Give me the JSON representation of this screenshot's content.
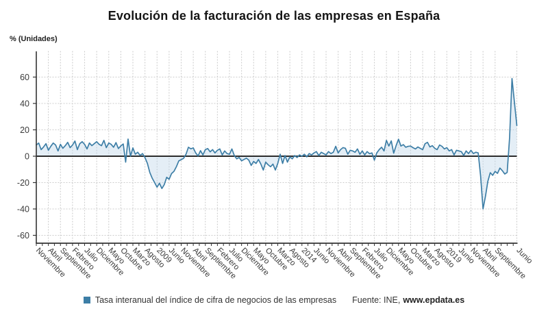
{
  "page": {
    "title": "Evolución de la facturación de las empresas en España"
  },
  "y_axis_label": "% (Unidades)",
  "legend": {
    "label": "Tasa interanual del índice de cifra de negocios de las empresas"
  },
  "source": {
    "prefix": "Fuente: INE,",
    "site": "www.epdata.es"
  },
  "colors": {
    "line": "#3d7ea6",
    "fill": "#bed7ea",
    "zero_line": "#2b2b2b",
    "axis": "#333333",
    "grid": "#c9c9c9",
    "tick_text": "#3a3a3a",
    "legend_marker": "#3d7ea6"
  },
  "chart_data": {
    "type": "area",
    "title": "Evolución de la facturación de las empresas en España",
    "xlabel": "",
    "ylabel": "% (Unidades)",
    "unit": "% interanual",
    "x_start_month": "2004-11",
    "x_end_month": "2021-06",
    "months_total": 200,
    "ylim": [
      -66,
      80
    ],
    "y_ticks": [
      60,
      40,
      20,
      0,
      -20,
      -40,
      -60
    ],
    "zero_baseline": true,
    "grid": "dotted",
    "legend_position": "bottom",
    "x_tick_positions": [
      0,
      5,
      10,
      15,
      20,
      25,
      30,
      35,
      40,
      45,
      50,
      55,
      60,
      65,
      70,
      75,
      80,
      85,
      90,
      95,
      100,
      105,
      110,
      115,
      120,
      125,
      130,
      135,
      140,
      145,
      150,
      155,
      160,
      165,
      170,
      175,
      180,
      185,
      190,
      199
    ],
    "x_tick_labels": [
      "Noviembre",
      "Abril",
      "Septiembre",
      "Febrero",
      "Julio",
      "Diciembre",
      "Mayo",
      "Octubre",
      "Marzo",
      "Agosto",
      "2009",
      "Junio",
      "Noviembre",
      "Abril",
      "Septiembre",
      "Febrero",
      "Julio",
      "Diciembre",
      "Mayo",
      "Octubre",
      "Marzo",
      "Agosto",
      "2014",
      "Junio",
      "Noviembre",
      "Abril",
      "Septiembre",
      "Febrero",
      "Julio",
      "Diciembre",
      "Mayo",
      "Octubre",
      "Marzo",
      "Agosto",
      "2019",
      "Junio",
      "Noviembre",
      "Abril",
      "Septiembre",
      "Junio"
    ],
    "series": [
      {
        "name": "Tasa interanual del índice de cifra de negocios de las empresas",
        "values": [
          8.5,
          10,
          5,
          7,
          9.5,
          4.5,
          7.5,
          10,
          8.5,
          4,
          9,
          6,
          8,
          10.5,
          6.5,
          8.5,
          11.5,
          5,
          9.5,
          11,
          9,
          5.5,
          10,
          8,
          9.5,
          11,
          9,
          8,
          12,
          6.5,
          10,
          9,
          6.8,
          10.3,
          5.8,
          7.8,
          9.3,
          -4.5,
          13,
          0,
          6.3,
          1.5,
          3,
          0.6,
          2,
          -1,
          -5.4,
          -12.3,
          -16.7,
          -20,
          -23.5,
          -20.5,
          -24.5,
          -21.5,
          -16,
          -17.5,
          -13.2,
          -11.5,
          -8,
          -3.6,
          -2.6,
          -1.6,
          1.5,
          6.8,
          5.6,
          6.3,
          2.5,
          0.2,
          4.2,
          1,
          5,
          5.8,
          3.3,
          5,
          2.5,
          4.5,
          5.5,
          1,
          4,
          2,
          1.5,
          5.5,
          0.5,
          -2,
          -1,
          -3.5,
          -2.5,
          -1.5,
          -3,
          -7,
          -4,
          -5.5,
          -2.5,
          -6,
          -10.5,
          -4.5,
          -6.5,
          -8,
          -6,
          -10.5,
          -5.5,
          1.5,
          -5.5,
          0.5,
          -4.5,
          -0.5,
          -2,
          0.5,
          -1,
          1,
          0,
          1.5,
          -0.5,
          2,
          1,
          2.5,
          3.5,
          0.5,
          3,
          2,
          1,
          3.5,
          2,
          3,
          7.5,
          2.5,
          5,
          6.5,
          6,
          1.5,
          4.5,
          4,
          3,
          5.5,
          1.5,
          4,
          1,
          3.5,
          1.9,
          2.5,
          -3,
          2.5,
          5,
          6.8,
          4,
          12,
          7.7,
          11.6,
          2.3,
          8,
          12.9,
          7.7,
          8.8,
          6.8,
          7.5,
          7.7,
          6.5,
          5.5,
          7,
          6,
          5,
          9.5,
          10.5,
          7,
          8,
          6,
          5,
          8.5,
          7.5,
          5.5,
          6.5,
          4,
          5,
          1,
          4.5,
          4,
          3.5,
          0.6,
          4,
          2,
          4.5,
          2,
          3,
          2.5,
          -15,
          -40,
          -30.5,
          -19,
          -12.5,
          -14.5,
          -11.5,
          -13,
          -9,
          -11,
          -13.5,
          -12.3,
          14,
          58.9,
          41,
          23.3
        ]
      }
    ]
  }
}
